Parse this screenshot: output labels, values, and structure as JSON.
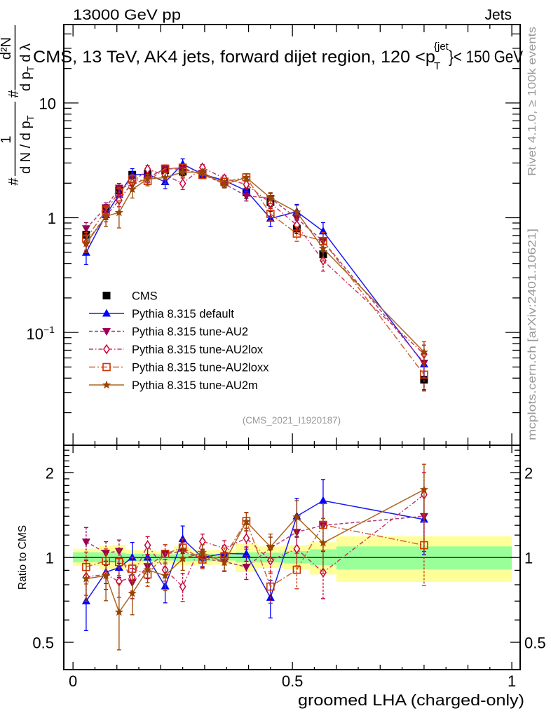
{
  "chart_data": {
    "type": "line",
    "header_left": "13000 GeV pp",
    "header_right": "Jets",
    "title": {
      "main": "CMS, 13 TeV, AK4 jets, forward dijet region, 120 <p",
      "sup": "{jet",
      "sub": "T",
      "tail": "}< 150 GeV"
    },
    "watermark": "(CMS_2021_I1920187)",
    "side_text_top": "Rivet 4.1.0, ≥ 100k events",
    "side_text_bottom": "mcplots.cern.ch [arXiv:2401.10621]",
    "xlabel": "groomed LHA (charged-only)",
    "ylabel": {
      "hash": "#",
      "num1": "1",
      "den1": "d N / d p",
      "den1_sub": "T",
      "num2": "d²N",
      "den2": "d p",
      "den2_sub": "T",
      "den2_tail": "  d λ"
    },
    "xscale": "linear",
    "xlim": [
      -0.021,
      1.019
    ],
    "xticks": [
      {
        "value": 0,
        "label": "0"
      },
      {
        "value": 0.5,
        "label": "0.5"
      },
      {
        "value": 1,
        "label": "1"
      }
    ],
    "grid": false,
    "legend_position": "left, lower half of main panel",
    "bin_edges": [
      0,
      0.06,
      0.09,
      0.12,
      0.15,
      0.19,
      0.23,
      0.27,
      0.32,
      0.37,
      0.42,
      0.48,
      0.54,
      0.6,
      1.0
    ],
    "x": [
      0.03,
      0.075,
      0.105,
      0.135,
      0.17,
      0.21,
      0.25,
      0.295,
      0.345,
      0.395,
      0.45,
      0.51,
      0.57,
      0.8
    ],
    "main_panel": {
      "yscale": "log",
      "ylim": [
        0.0104,
        48.3
      ],
      "yticks": [
        {
          "value": 0.1,
          "label": "10",
          "sup": "−1"
        },
        {
          "value": 1,
          "label": "1",
          "sup": ""
        },
        {
          "value": 10,
          "label": "10",
          "sup": ""
        }
      ]
    },
    "ratio_panel": {
      "ylabel": "Ratio to CMS",
      "yscale": "log",
      "ylim": [
        0.4,
        2.5
      ],
      "reference": 1,
      "yticks": [
        {
          "value": 0.5,
          "label": "0.5"
        },
        {
          "value": 1,
          "label": "1"
        },
        {
          "value": 2,
          "label": "2"
        }
      ],
      "cms_band": {
        "total": [
          [
            0.934,
            1.073
          ],
          [
            0.912,
            1.098
          ],
          [
            0.904,
            1.11
          ],
          [
            0.93,
            1.063
          ],
          [
            0.94,
            1.06
          ],
          [
            0.95,
            1.05
          ],
          [
            0.94,
            1.094
          ],
          [
            0.94,
            1.06
          ],
          [
            0.943,
            1.063
          ],
          [
            0.887,
            1.12
          ],
          [
            0.918,
            1.094
          ],
          [
            0.907,
            1.105
          ],
          [
            0.87,
            1.132
          ],
          [
            0.818,
            1.188
          ]
        ],
        "stat": [
          [
            0.961,
            1.043
          ],
          [
            0.961,
            1.043
          ],
          [
            0.96,
            1.04
          ],
          [
            0.97,
            1.03
          ],
          [
            0.97,
            1.03
          ],
          [
            0.975,
            1.025
          ],
          [
            0.97,
            1.03
          ],
          [
            0.97,
            1.03
          ],
          [
            0.975,
            1.025
          ],
          [
            0.96,
            1.043
          ],
          [
            0.96,
            1.04
          ],
          [
            0.952,
            1.053
          ],
          [
            0.939,
            1.069
          ],
          [
            0.907,
            1.094
          ]
        ]
      }
    },
    "colors": {
      "band_total": "#ffff99",
      "band_stat": "#99ff99",
      "reference_line": "#000000",
      "side_text": "#999999"
    },
    "series": [
      {
        "name": "CMS",
        "kind": "data",
        "values": [
          0.71,
          1.19,
          1.73,
          2.37,
          2.4,
          2.6,
          2.52,
          2.4,
          2.04,
          1.67,
          1.37,
          0.805,
          0.48,
          0.0388
        ],
        "color": "#000000",
        "line_color": "#000000",
        "marker": "square-filled",
        "line": "none"
      },
      {
        "name": "Pythia 8.315 default",
        "kind": "mc",
        "values": [
          0.497,
          1.06,
          1.59,
          2.37,
          2.4,
          2.05,
          2.93,
          2.4,
          2.11,
          1.72,
          0.986,
          1.13,
          0.763,
          0.0529
        ],
        "ratio": [
          0.7,
          0.887,
          0.92,
          1.0,
          1.0,
          0.79,
          1.163,
          1.0,
          1.033,
          1.029,
          0.72,
          1.4,
          1.59,
          1.363
        ],
        "ratio_err": [
          0.15,
          0.08,
          0.07,
          0.13,
          0.08,
          0.1,
          0.13,
          0.07,
          0.07,
          0.06,
          0.11,
          0.22,
          0.3,
          0.34
        ],
        "color": "#0000ff",
        "line_color": "#1a1af0",
        "marker": "triangle-up",
        "line": "solid"
      },
      {
        "name": "Pythia 8.315 tune-AU2",
        "kind": "mc",
        "values": [
          0.807,
          1.23,
          1.82,
          1.93,
          2.23,
          2.68,
          2.65,
          2.38,
          1.97,
          1.55,
          1.48,
          0.99,
          0.624,
          0.0543
        ],
        "ratio": [
          1.137,
          1.037,
          1.053,
          0.814,
          0.93,
          1.029,
          1.053,
          0.99,
          0.966,
          0.925,
          1.08,
          1.23,
          1.3,
          1.4
        ],
        "ratio_err": [
          0.14,
          0.1,
          0.1,
          0.1,
          0.09,
          0.08,
          0.08,
          0.07,
          0.07,
          0.09,
          0.1,
          0.15,
          0.25,
          0.35
        ],
        "color": "#990055",
        "line_color": "#b03a7a",
        "marker": "triangle-down",
        "line": "dashed"
      },
      {
        "name": "Pythia 8.315 tune-AU2lox",
        "kind": "mc",
        "values": [
          0.606,
          1.04,
          1.42,
          2.02,
          2.65,
          2.35,
          1.99,
          2.74,
          2.2,
          1.95,
          1.34,
          0.864,
          0.424,
          0.0648
        ],
        "ratio": [
          0.854,
          0.87,
          0.822,
          0.85,
          1.105,
          0.904,
          0.788,
          1.14,
          1.077,
          1.17,
          0.975,
          1.073,
          0.884,
          1.67
        ],
        "ratio_err": [
          0.12,
          0.1,
          0.1,
          0.09,
          0.08,
          0.08,
          0.09,
          0.07,
          0.07,
          0.1,
          0.1,
          0.14,
          0.17,
          0.33
        ],
        "color": "#cc0033",
        "line_color": "#cc3366",
        "marker": "diamond-open",
        "line": "dashdot"
      },
      {
        "name": "Pythia 8.315 tune-AU2loxx",
        "kind": "mc",
        "values": [
          0.657,
          1.16,
          1.67,
          2.16,
          2.09,
          2.68,
          2.73,
          2.36,
          2.06,
          2.25,
          1.08,
          0.728,
          0.626,
          0.0429
        ],
        "ratio": [
          0.925,
          0.972,
          0.963,
          0.912,
          0.87,
          1.03,
          1.083,
          0.983,
          1.01,
          1.345,
          0.788,
          0.904,
          1.305,
          1.105
        ],
        "ratio_err": [
          0.12,
          0.1,
          0.1,
          0.09,
          0.08,
          0.08,
          0.08,
          0.07,
          0.07,
          0.1,
          0.1,
          0.13,
          0.25,
          0.31
        ],
        "color": "#cc3300",
        "line_color": "#cc6633",
        "marker": "square-open",
        "line": "longdashdot"
      },
      {
        "name": "Pythia 8.315 tune-AU2m",
        "kind": "mc",
        "values": [
          0.596,
          1.03,
          1.11,
          1.77,
          2.17,
          2.24,
          2.5,
          2.49,
          1.96,
          2.24,
          1.49,
          1.12,
          0.54,
          0.0675
        ],
        "ratio": [
          0.84,
          0.862,
          0.64,
          0.746,
          0.904,
          0.862,
          0.99,
          1.039,
          0.961,
          1.34,
          1.09,
          1.39,
          1.126,
          1.74
        ],
        "ratio_err": [
          0.14,
          0.16,
          0.17,
          0.12,
          0.09,
          0.1,
          0.09,
          0.07,
          0.07,
          0.1,
          0.12,
          0.2,
          0.25,
          0.4
        ],
        "color": "#994400",
        "line_color": "#aa6622",
        "marker": "star",
        "line": "solid"
      }
    ]
  }
}
